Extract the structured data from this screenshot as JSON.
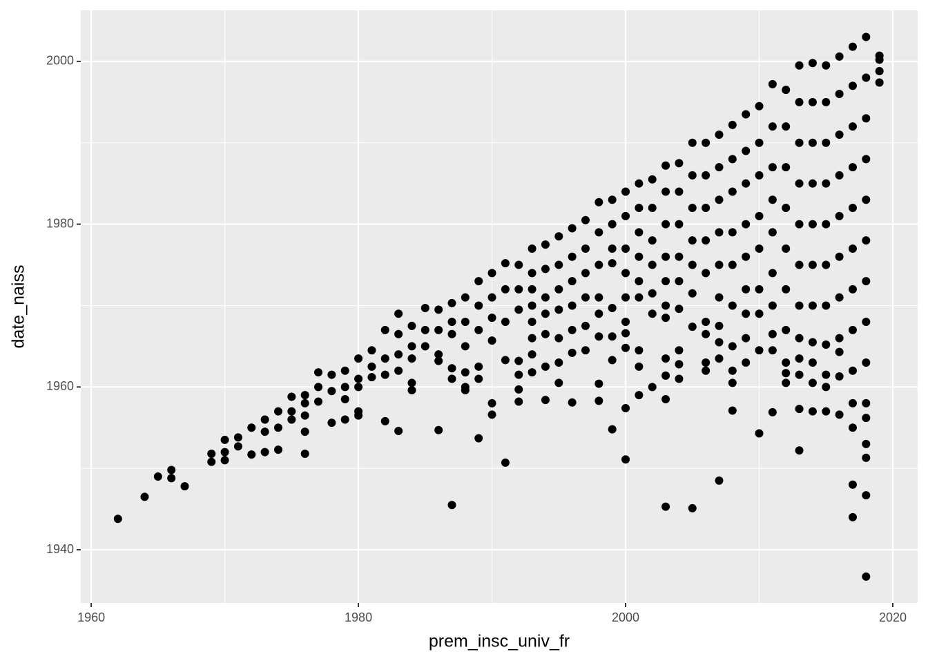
{
  "chart_data": {
    "type": "scatter",
    "x_label": "prem_insc_univ_fr",
    "y_label": "date_naiss",
    "color": "#000000",
    "background": "#ebebeb",
    "grid": true,
    "xlim": [
      1959.22,
      2021.86
    ],
    "ylim": [
      1933.47,
      2006.27
    ],
    "xticks": [
      1960,
      1980,
      2000,
      2020
    ],
    "yticks": [
      1940,
      1960,
      1980,
      2000
    ],
    "x_minor_ticks": [
      1970,
      1990,
      2010
    ],
    "y_minor_ticks": [
      1950,
      1970,
      1990
    ],
    "x": [
      1962,
      1964,
      1965,
      1966,
      1966,
      1967,
      1969,
      1969,
      1970,
      1970,
      1970,
      1971,
      1971,
      1972,
      1972,
      1973,
      1973,
      1973,
      1974,
      1974,
      1974,
      1975,
      1975,
      1975,
      1976,
      1976,
      1976,
      1976,
      1976,
      1977,
      1977,
      1977,
      1978,
      1978,
      1978,
      1979,
      1979,
      1979,
      1979,
      1980,
      1980,
      1980,
      1980,
      1980,
      1981,
      1981,
      1981,
      1982,
      1982,
      1982,
      1982,
      1983,
      1983,
      1983,
      1983,
      1983,
      1984,
      1984,
      1984,
      1984,
      1984,
      1985,
      1985,
      1985,
      1986,
      1986,
      1986,
      1986,
      1986,
      1987,
      1987,
      1987,
      1987,
      1987,
      1987,
      1988,
      1988,
      1988,
      1988,
      1988,
      1988,
      1989,
      1989,
      1989,
      1989,
      1989,
      1989,
      1990,
      1990,
      1990,
      1990,
      1990,
      1990,
      1991,
      1991,
      1991,
      1991,
      1991,
      1992,
      1992,
      1992,
      1992,
      1992,
      1992,
      1992,
      1993,
      1993,
      1993,
      1993,
      1993,
      1993,
      1993,
      1993,
      1994,
      1994,
      1994,
      1994,
      1994,
      1994,
      1994,
      1995,
      1995,
      1995,
      1995,
      1995,
      1995,
      1995,
      1996,
      1996,
      1996,
      1996,
      1996,
      1996,
      1996,
      1997,
      1997,
      1997,
      1997,
      1997,
      1997,
      1998,
      1998,
      1998,
      1998,
      1998,
      1998,
      1998,
      1998,
      1999,
      1999,
      1999,
      1999,
      1999,
      1999,
      1999,
      1999,
      2000,
      2000,
      2000,
      2000,
      2000,
      2000,
      2000,
      2000,
      2000,
      2000,
      2001,
      2001,
      2001,
      2001,
      2001,
      2001,
      2001,
      2001,
      2001,
      2002,
      2002,
      2002,
      2002,
      2002,
      2002,
      2002,
      2003,
      2003,
      2003,
      2003,
      2003,
      2003,
      2003,
      2003,
      2003,
      2003,
      2003,
      2004,
      2004,
      2004,
      2004,
      2004,
      2004,
      2004,
      2004,
      2004,
      2005,
      2005,
      2005,
      2005,
      2005,
      2005,
      2005,
      2005,
      2006,
      2006,
      2006,
      2006,
      2006,
      2006,
      2006,
      2006,
      2006,
      2007,
      2007,
      2007,
      2007,
      2007,
      2007,
      2007,
      2007,
      2007,
      2007,
      2008,
      2008,
      2008,
      2008,
      2008,
      2008,
      2008,
      2008,
      2008,
      2008,
      2009,
      2009,
      2009,
      2009,
      2009,
      2009,
      2009,
      2009,
      2009,
      2010,
      2010,
      2010,
      2010,
      2010,
      2010,
      2010,
      2010,
      2010,
      2011,
      2011,
      2011,
      2011,
      2011,
      2011,
      2011,
      2011,
      2011,
      2011,
      2012,
      2012,
      2012,
      2012,
      2012,
      2012,
      2012,
      2012,
      2012,
      2012,
      2013,
      2013,
      2013,
      2013,
      2013,
      2013,
      2013,
      2013,
      2013,
      2013,
      2013,
      2013,
      2014,
      2014,
      2014,
      2014,
      2014,
      2014,
      2014,
      2014,
      2014,
      2014,
      2014,
      2015,
      2015,
      2015,
      2015,
      2015,
      2015,
      2015,
      2015,
      2015,
      2015,
      2015,
      2016,
      2016,
      2016,
      2016,
      2016,
      2016,
      2016,
      2016,
      2016,
      2016,
      2016,
      2017,
      2017,
      2017,
      2017,
      2017,
      2017,
      2017,
      2017,
      2017,
      2017,
      2017,
      2017,
      2017,
      2018,
      2018,
      2018,
      2018,
      2018,
      2018,
      2018,
      2018,
      2018,
      2018,
      2018,
      2018,
      2018,
      2018,
      2018,
      2019,
      2019,
      2019,
      2019
    ],
    "values": [
      1943.8,
      1946.5,
      1949,
      1949.8,
      1948.8,
      1947.8,
      1951.8,
      1950.8,
      1953.5,
      1952,
      1951,
      1953.8,
      1952.7,
      1955,
      1951.7,
      1956,
      1954.5,
      1952,
      1957,
      1955,
      1952.3,
      1958.8,
      1957,
      1956,
      1959,
      1958,
      1956.5,
      1954.5,
      1951.8,
      1961.8,
      1960,
      1958.2,
      1961.5,
      1959.5,
      1955.6,
      1962,
      1960,
      1958.5,
      1956,
      1963.5,
      1961,
      1960,
      1957,
      1956.5,
      1964.5,
      1962.5,
      1961.2,
      1967,
      1963.5,
      1961.5,
      1955.8,
      1969,
      1966.5,
      1964,
      1962,
      1954.6,
      1967.5,
      1965,
      1963.5,
      1960.5,
      1959.6,
      1969.7,
      1967,
      1965,
      1969.5,
      1967,
      1964,
      1963.2,
      1954.7,
      1970.3,
      1968,
      1966.5,
      1962.3,
      1961,
      1945.5,
      1971,
      1968,
      1965,
      1961.8,
      1960,
      1959.6,
      1973,
      1970,
      1967,
      1962.5,
      1961,
      1953.7,
      1974,
      1971,
      1968.5,
      1965.7,
      1958,
      1956.6,
      1975.2,
      1972,
      1968,
      1963.3,
      1950.7,
      1975,
      1972,
      1969.5,
      1963.2,
      1961.5,
      1959.7,
      1958.2,
      1977,
      1974,
      1972,
      1970,
      1968,
      1966,
      1964,
      1961.8,
      1977.5,
      1974.5,
      1971,
      1969,
      1966.5,
      1962.5,
      1958.4,
      1978.5,
      1975,
      1972,
      1969.5,
      1966,
      1963,
      1960.5,
      1979.5,
      1976,
      1973,
      1970,
      1967,
      1964.2,
      1958.1,
      1980.5,
      1977,
      1974,
      1971,
      1967.5,
      1964.5,
      1982.7,
      1979,
      1975,
      1971,
      1969,
      1966.2,
      1960.4,
      1958.3,
      1983,
      1980,
      1977,
      1975.2,
      1969.7,
      1966.2,
      1963.3,
      1954.8,
      1984,
      1981,
      1977,
      1974,
      1971,
      1968,
      1966.6,
      1964.8,
      1957.4,
      1951.1,
      1985,
      1982,
      1979,
      1976,
      1973,
      1971,
      1964.5,
      1962.5,
      1959,
      1985.5,
      1982,
      1978,
      1975,
      1971.5,
      1969,
      1960,
      1987.2,
      1984,
      1980,
      1976,
      1973,
      1970,
      1968.5,
      1963.5,
      1961.4,
      1958.5,
      1945.3,
      1987.5,
      1984,
      1980,
      1976,
      1973,
      1969.6,
      1964.5,
      1962.8,
      1961,
      1990,
      1986,
      1982,
      1978,
      1975,
      1971.5,
      1967.4,
      1945.1,
      1990,
      1986,
      1982,
      1978,
      1974,
      1968,
      1966.5,
      1963,
      1962,
      1991,
      1987,
      1983,
      1979,
      1975,
      1971,
      1967.5,
      1965.5,
      1963.5,
      1948.5,
      1992.2,
      1988,
      1984,
      1979,
      1975,
      1970,
      1965,
      1962,
      1960.5,
      1957.1,
      1993.5,
      1989,
      1985,
      1980,
      1976,
      1972,
      1969,
      1966,
      1963,
      1994.5,
      1990,
      1986,
      1981,
      1977,
      1972,
      1969,
      1964.5,
      1954.3,
      1997.2,
      1992,
      1987,
      1983,
      1979,
      1974,
      1970,
      1966.5,
      1964.5,
      1956.9,
      1996.5,
      1992,
      1987,
      1982,
      1977,
      1972,
      1967,
      1963,
      1961.7,
      1960.5,
      1999.5,
      1995,
      1990,
      1985,
      1980,
      1975,
      1970,
      1966,
      1963.5,
      1961.5,
      1957.3,
      1952.2,
      1999.8,
      1995,
      1990,
      1985,
      1980,
      1975,
      1970,
      1965.5,
      1963,
      1960.5,
      1957,
      1999.5,
      1995,
      1990,
      1985,
      1980,
      1975,
      1970,
      1965.2,
      1961.5,
      1960,
      1957,
      2000.6,
      1996,
      1991,
      1986,
      1981,
      1976,
      1971,
      1966,
      1964.3,
      1961.3,
      1956.6,
      2001.8,
      1997,
      1992,
      1987,
      1982,
      1977,
      1972,
      1967,
      1962,
      1958,
      1955,
      1948,
      1944,
      2003,
      1998,
      1993,
      1988,
      1983,
      1978,
      1973,
      1968,
      1963,
      1958,
      1956.2,
      1953,
      1951.3,
      1946.7,
      1936.7,
      2000.7,
      2000.2,
      1998.8,
      1997.4
    ]
  }
}
